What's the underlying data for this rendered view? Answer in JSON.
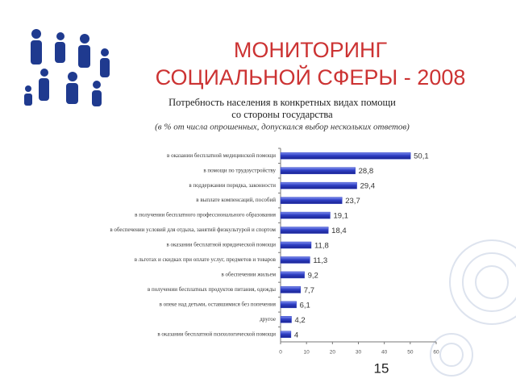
{
  "slide": {
    "title": [
      "МОНИТОРИНГ",
      "СОЦИАЛЬНОЙ СФЕРЫ - 2008"
    ],
    "page_number": "15"
  },
  "chart_data": {
    "type": "barh",
    "title": [
      "Потребность населения в конкретных видах помощи",
      "со стороны государства"
    ],
    "subtitle": "(в % от числа опрошенных, допускался выбор нескольких ответов)",
    "categories": [
      "в оказании бесплатной медицинской помощи",
      "в помощи по трудоустройству",
      "в поддержании порядка, законности",
      "в выплате компенсаций, пособий",
      "в получении бесплатного профессионального образования",
      "в обеспечении условий для отдыха, занятий физкультурой и спортом",
      "в оказании бесплатной юридической помощи",
      "в льготах и скидках при оплате услуг, предметов и товаров",
      "в обеспечении жильем",
      "в получении бесплатных продуктов питания, одежды",
      "в опеке над детьми, оставшимися без попечения",
      "другое",
      "в оказании бесплатной психологической помощи"
    ],
    "values": [
      50.1,
      28.8,
      29.4,
      23.7,
      19.1,
      18.4,
      11.8,
      11.3,
      9.2,
      7.7,
      6.1,
      4.2,
      4
    ],
    "value_labels": [
      "50,1",
      "28,8",
      "29,4",
      "23,7",
      "19,1",
      "18,4",
      "11,8",
      "11,3",
      "9,2",
      "7,7",
      "6,1",
      "4,2",
      "4"
    ],
    "color": "#2f3fc4",
    "xlim": [
      0,
      60
    ],
    "xticks": [
      0,
      10,
      20,
      30,
      40,
      50,
      60
    ]
  }
}
